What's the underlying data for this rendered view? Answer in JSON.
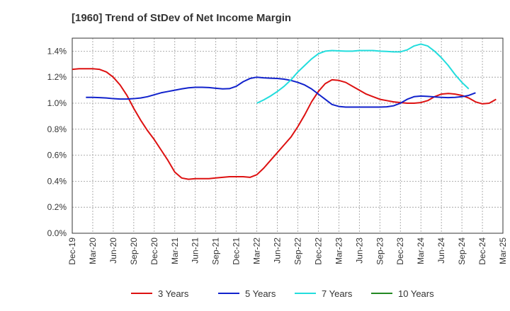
{
  "chart_data": {
    "type": "line",
    "title": "[1960]  Trend of StDev of Net Income Margin",
    "xlabel": "",
    "ylabel": "",
    "x_tick_labels": [
      "Dec-19",
      "Mar-20",
      "Jun-20",
      "Sep-20",
      "Dec-20",
      "Mar-21",
      "Jun-21",
      "Sep-21",
      "Dec-21",
      "Mar-22",
      "Jun-22",
      "Sep-22",
      "Dec-22",
      "Mar-23",
      "Jun-23",
      "Sep-23",
      "Dec-23",
      "Mar-24",
      "Jun-24",
      "Sep-24",
      "Dec-24",
      "Mar-25"
    ],
    "y_tick_labels": [
      "0.0%",
      "0.2%",
      "0.4%",
      "0.6%",
      "0.8%",
      "1.0%",
      "1.2%",
      "1.4%"
    ],
    "ylim": [
      0,
      1.5
    ],
    "y_unit": "%",
    "grid": true,
    "legend_position": "bottom",
    "series": [
      {
        "name": "3 Years",
        "color": "#dd1111",
        "start_index": 0,
        "values": [
          1.26,
          1.265,
          1.265,
          1.265,
          1.26,
          1.24,
          1.2,
          1.14,
          1.06,
          0.96,
          0.87,
          0.79,
          0.72,
          0.64,
          0.56,
          0.47,
          0.425,
          0.415,
          0.42,
          0.42,
          0.42,
          0.425,
          0.43,
          0.435,
          0.435,
          0.435,
          0.43,
          0.45,
          0.5,
          0.56,
          0.62,
          0.68,
          0.74,
          0.82,
          0.91,
          1.01,
          1.09,
          1.15,
          1.18,
          1.175,
          1.16,
          1.13,
          1.1,
          1.07,
          1.05,
          1.03,
          1.02,
          1.01,
          1.005,
          1.0,
          1.0,
          1.005,
          1.02,
          1.05,
          1.07,
          1.075,
          1.07,
          1.06,
          1.04,
          1.01,
          0.995,
          1.0,
          1.03
        ]
      },
      {
        "name": "5 Years",
        "color": "#1122cc",
        "start_index": 2,
        "values": [
          1.045,
          1.045,
          1.043,
          1.04,
          1.035,
          1.032,
          1.032,
          1.035,
          1.04,
          1.05,
          1.065,
          1.08,
          1.09,
          1.1,
          1.11,
          1.118,
          1.122,
          1.122,
          1.12,
          1.115,
          1.11,
          1.112,
          1.13,
          1.165,
          1.19,
          1.2,
          1.195,
          1.192,
          1.19,
          1.185,
          1.175,
          1.16,
          1.14,
          1.11,
          1.07,
          1.03,
          0.99,
          0.975,
          0.97,
          0.97,
          0.97,
          0.97,
          0.97,
          0.97,
          0.972,
          0.98,
          1.0,
          1.03,
          1.05,
          1.055,
          1.052,
          1.048,
          1.045,
          1.043,
          1.045,
          1.05,
          1.06,
          1.08
        ]
      },
      {
        "name": "7 Years",
        "color": "#22dddd",
        "start_index": 27,
        "values": [
          1.0,
          1.025,
          1.055,
          1.09,
          1.13,
          1.18,
          1.24,
          1.29,
          1.34,
          1.38,
          1.4,
          1.405,
          1.402,
          1.4,
          1.4,
          1.405,
          1.405,
          1.405,
          1.4,
          1.398,
          1.395,
          1.395,
          1.41,
          1.44,
          1.455,
          1.44,
          1.4,
          1.35,
          1.29,
          1.22,
          1.16,
          1.11
        ]
      },
      {
        "name": "10 Years",
        "color": "#228822",
        "start_index": 0,
        "values": []
      }
    ]
  }
}
